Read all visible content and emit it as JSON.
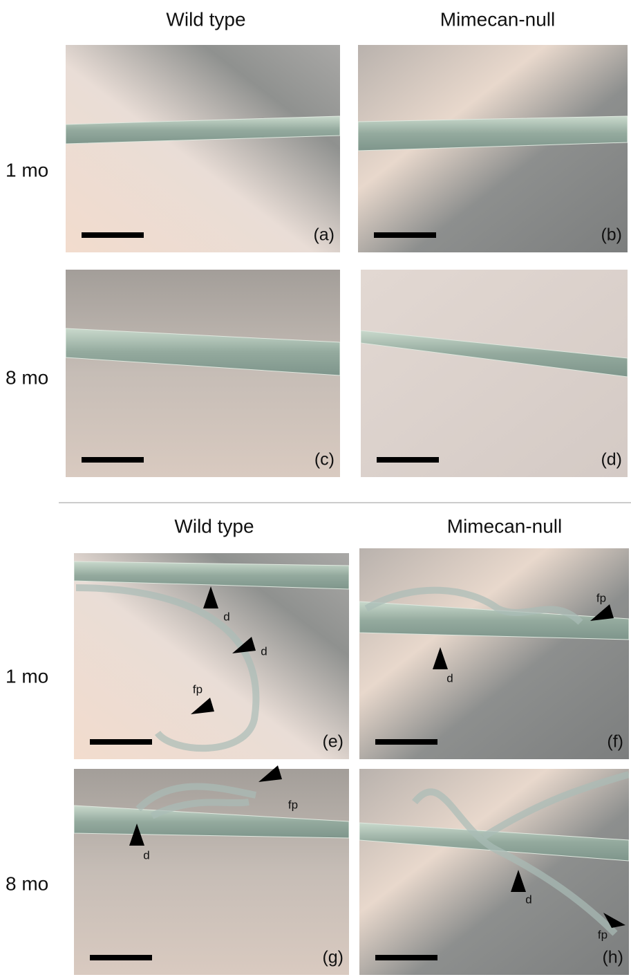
{
  "sections": [
    {
      "column_headers": [
        "Wild type",
        "Mimecan-null"
      ],
      "row_labels": [
        "1 mo",
        "8 mo"
      ],
      "panels": [
        {
          "label": "(a)",
          "annotations": []
        },
        {
          "label": "(b)",
          "annotations": []
        },
        {
          "label": "(c)",
          "annotations": []
        },
        {
          "label": "(d)",
          "annotations": []
        }
      ]
    },
    {
      "column_headers": [
        "Wild type",
        "Mimecan-null"
      ],
      "row_labels": [
        "1 mo",
        "8 mo"
      ],
      "panels": [
        {
          "label": "(e)",
          "annotations": [
            "d",
            "d",
            "fp"
          ]
        },
        {
          "label": "(f)",
          "annotations": [
            "fp",
            "d"
          ]
        },
        {
          "label": "(g)",
          "annotations": [
            "fp",
            "d"
          ]
        },
        {
          "label": "(h)",
          "annotations": [
            "d",
            "fp"
          ]
        }
      ]
    }
  ]
}
